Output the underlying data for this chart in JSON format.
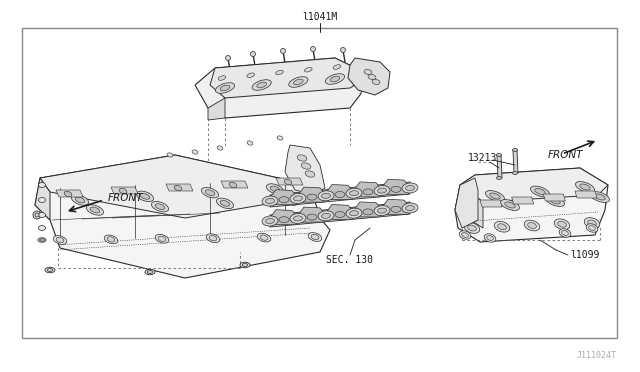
{
  "bg_color": "#ffffff",
  "border_color": "#888888",
  "lc": "#2a2a2a",
  "tc": "#1a1a1a",
  "label_top": "l1041M",
  "label_bottom_right": "J111024T",
  "label_13213": "13213",
  "label_sec130": "SEC. 130",
  "label_11099": "l1099",
  "label_front_left": "FRONT",
  "label_front_right": "FRONT",
  "fig_width": 6.4,
  "fig_height": 3.72,
  "dpi": 100,
  "border": [
    22,
    28,
    595,
    310
  ]
}
